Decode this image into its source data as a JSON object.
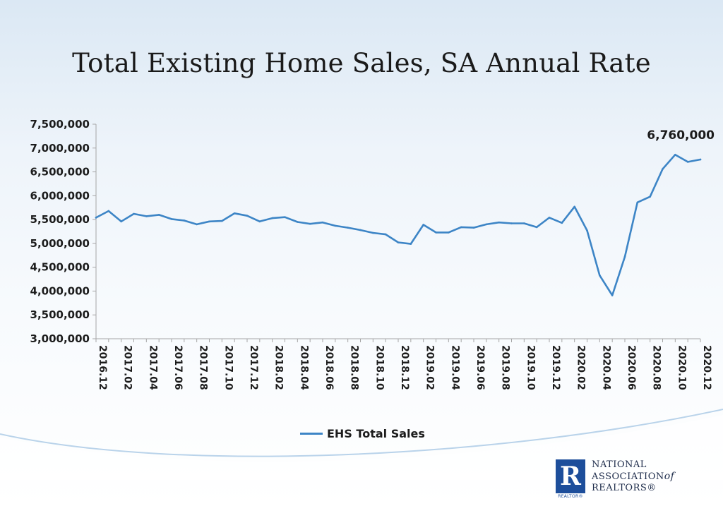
{
  "title": "Total Existing Home Sales, SA Annual Rate",
  "colors": {
    "series": "#3d85c6",
    "axis": "#a6a6a6",
    "text": "#1c1c1c",
    "brand": "#1d4e9b"
  },
  "chart_data": {
    "type": "line",
    "title": "Total Existing Home Sales, SA Annual Rate",
    "xlabel": "",
    "ylabel": "",
    "ylim": [
      3000000,
      7500000
    ],
    "yticks": [
      3000000,
      3500000,
      4000000,
      4500000,
      5000000,
      5500000,
      6000000,
      6500000,
      7000000,
      7500000
    ],
    "ytick_labels": [
      "3,000,000",
      "3,500,000",
      "4,000,000",
      "4,500,000",
      "5,000,000",
      "5,500,000",
      "6,000,000",
      "6,500,000",
      "7,000,000",
      "7,500,000"
    ],
    "x": [
      "2016.12",
      "2017.01",
      "2017.02",
      "2017.03",
      "2017.04",
      "2017.05",
      "2017.06",
      "2017.07",
      "2017.08",
      "2017.09",
      "2017.10",
      "2017.11",
      "2017.12",
      "2018.01",
      "2018.02",
      "2018.03",
      "2018.04",
      "2018.05",
      "2018.06",
      "2018.07",
      "2018.08",
      "2018.09",
      "2018.10",
      "2018.11",
      "2018.12",
      "2019.01",
      "2019.02",
      "2019.03",
      "2019.04",
      "2019.05",
      "2019.06",
      "2019.07",
      "2019.08",
      "2019.09",
      "2019.10",
      "2019.11",
      "2019.12",
      "2020.01",
      "2020.02",
      "2020.03",
      "2020.04",
      "2020.05",
      "2020.06",
      "2020.07",
      "2020.08",
      "2020.09",
      "2020.10",
      "2020.11",
      "2020.12"
    ],
    "xtick_labels": [
      "2016.12",
      "2017.02",
      "2017.04",
      "2017.06",
      "2017.08",
      "2017.10",
      "2017.12",
      "2018.02",
      "2018.04",
      "2018.06",
      "2018.08",
      "2018.10",
      "2018.12",
      "2019.02",
      "2019.04",
      "2019.06",
      "2019.08",
      "2019.10",
      "2019.12",
      "2020.02",
      "2020.04",
      "2020.06",
      "2020.08",
      "2020.10",
      "2020.12"
    ],
    "series": [
      {
        "name": "EHS Total Sales",
        "values": [
          5540000,
          5680000,
          5460000,
          5620000,
          5570000,
          5600000,
          5510000,
          5480000,
          5400000,
          5460000,
          5470000,
          5630000,
          5580000,
          5460000,
          5530000,
          5550000,
          5450000,
          5410000,
          5440000,
          5370000,
          5330000,
          5280000,
          5220000,
          5190000,
          5020000,
          4990000,
          5390000,
          5230000,
          5230000,
          5340000,
          5330000,
          5400000,
          5440000,
          5420000,
          5420000,
          5340000,
          5540000,
          5430000,
          5770000,
          5270000,
          4330000,
          3910000,
          4720000,
          5860000,
          5980000,
          6560000,
          6860000,
          6710000,
          6760000
        ]
      }
    ],
    "annotation": {
      "x": "2020.12",
      "text": "6,760,000"
    },
    "legend": {
      "position": "bottom",
      "entries": [
        "EHS Total Sales"
      ]
    },
    "grid": false
  },
  "logo": {
    "mark_letter": "R",
    "mark_caption": "REALTOR®",
    "line1": "NATIONAL",
    "line2": "ASSOCIATION",
    "line2_of": "of",
    "line3": "REALTORS®"
  }
}
